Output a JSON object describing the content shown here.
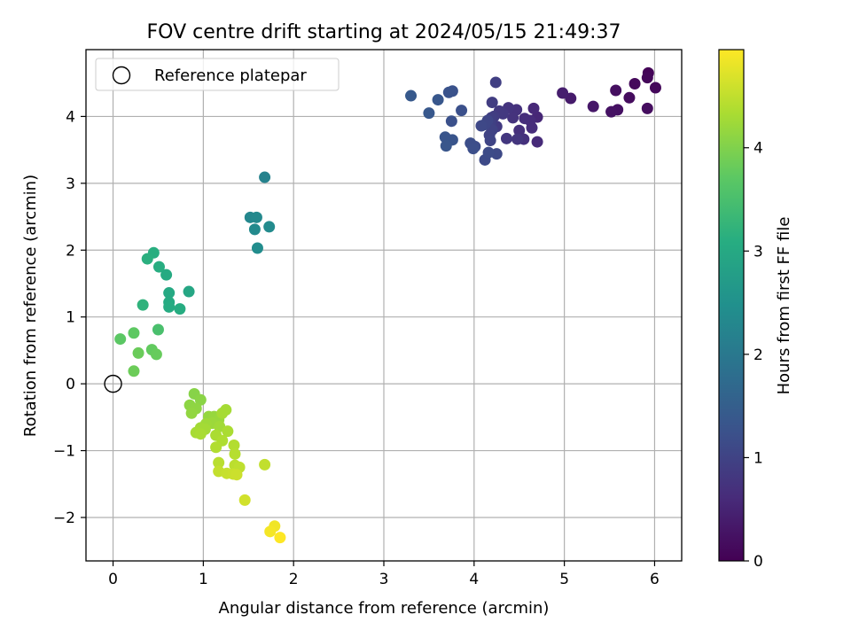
{
  "chart_data": {
    "type": "scatter",
    "title": "FOV centre drift starting at 2024/05/15 21:49:37",
    "xlabel": "Angular distance from reference (arcmin)",
    "ylabel": "Rotation from reference (arcmin)",
    "xlim": [
      -0.3,
      6.3
    ],
    "ylim": [
      -2.65,
      5.0
    ],
    "xticks": [
      0,
      1,
      2,
      3,
      4,
      5,
      6
    ],
    "yticks": [
      -2,
      -1,
      0,
      1,
      2,
      3,
      4
    ],
    "grid": true,
    "legend": {
      "placement": "top-left",
      "entries": [
        "Reference platepar"
      ]
    },
    "reference_point": {
      "x": 0,
      "y": 0
    },
    "colorbar": {
      "label": "Hours from first FF file",
      "range": [
        0,
        4.95
      ],
      "ticks": [
        0,
        1,
        2,
        3,
        4
      ],
      "colormap": "viridis"
    },
    "points": [
      {
        "x": 5.93,
        "y": 4.65,
        "c": 0.05
      },
      {
        "x": 5.92,
        "y": 4.58,
        "c": 0.08
      },
      {
        "x": 6.01,
        "y": 4.43,
        "c": 0.1
      },
      {
        "x": 5.78,
        "y": 4.49,
        "c": 0.12
      },
      {
        "x": 5.72,
        "y": 4.28,
        "c": 0.16
      },
      {
        "x": 5.92,
        "y": 4.12,
        "c": 0.18
      },
      {
        "x": 5.57,
        "y": 4.39,
        "c": 0.2
      },
      {
        "x": 5.59,
        "y": 4.1,
        "c": 0.22
      },
      {
        "x": 5.52,
        "y": 4.07,
        "c": 0.25
      },
      {
        "x": 5.32,
        "y": 4.15,
        "c": 0.32
      },
      {
        "x": 5.07,
        "y": 4.27,
        "c": 0.38
      },
      {
        "x": 4.98,
        "y": 4.35,
        "c": 0.42
      },
      {
        "x": 4.7,
        "y": 3.99,
        "c": 0.55
      },
      {
        "x": 4.66,
        "y": 4.12,
        "c": 0.58
      },
      {
        "x": 4.7,
        "y": 3.62,
        "c": 0.6
      },
      {
        "x": 4.62,
        "y": 3.94,
        "c": 0.62
      },
      {
        "x": 4.64,
        "y": 3.83,
        "c": 0.64
      },
      {
        "x": 4.56,
        "y": 3.97,
        "c": 0.66
      },
      {
        "x": 4.5,
        "y": 3.79,
        "c": 0.68
      },
      {
        "x": 4.55,
        "y": 3.66,
        "c": 0.7
      },
      {
        "x": 4.47,
        "y": 4.1,
        "c": 0.72
      },
      {
        "x": 4.43,
        "y": 3.98,
        "c": 0.74
      },
      {
        "x": 4.38,
        "y": 4.13,
        "c": 0.76
      },
      {
        "x": 4.48,
        "y": 3.66,
        "c": 0.78
      },
      {
        "x": 4.36,
        "y": 3.67,
        "c": 0.8
      },
      {
        "x": 4.32,
        "y": 4.04,
        "c": 0.82
      },
      {
        "x": 4.28,
        "y": 4.08,
        "c": 0.84
      },
      {
        "x": 4.25,
        "y": 3.85,
        "c": 0.86
      },
      {
        "x": 4.22,
        "y": 4.0,
        "c": 0.88
      },
      {
        "x": 4.2,
        "y": 4.21,
        "c": 0.9
      },
      {
        "x": 4.19,
        "y": 3.98,
        "c": 0.92
      },
      {
        "x": 4.24,
        "y": 4.51,
        "c": 0.94
      },
      {
        "x": 4.18,
        "y": 3.9,
        "c": 0.96
      },
      {
        "x": 4.2,
        "y": 3.8,
        "c": 0.98
      },
      {
        "x": 4.17,
        "y": 3.72,
        "c": 1.0
      },
      {
        "x": 4.18,
        "y": 3.64,
        "c": 1.02
      },
      {
        "x": 4.15,
        "y": 3.94,
        "c": 1.04
      },
      {
        "x": 4.12,
        "y": 3.88,
        "c": 1.06
      },
      {
        "x": 4.08,
        "y": 3.86,
        "c": 1.08
      },
      {
        "x": 4.25,
        "y": 3.44,
        "c": 1.1
      },
      {
        "x": 4.12,
        "y": 3.35,
        "c": 1.12
      },
      {
        "x": 4.16,
        "y": 3.46,
        "c": 1.14
      },
      {
        "x": 4.01,
        "y": 3.55,
        "c": 1.16
      },
      {
        "x": 3.96,
        "y": 3.6,
        "c": 1.18
      },
      {
        "x": 3.99,
        "y": 3.52,
        "c": 1.2
      },
      {
        "x": 3.86,
        "y": 4.09,
        "c": 1.22
      },
      {
        "x": 3.75,
        "y": 3.93,
        "c": 1.24
      },
      {
        "x": 3.76,
        "y": 4.38,
        "c": 1.26
      },
      {
        "x": 3.72,
        "y": 4.36,
        "c": 1.28
      },
      {
        "x": 3.76,
        "y": 3.65,
        "c": 1.3
      },
      {
        "x": 3.68,
        "y": 3.69,
        "c": 1.32
      },
      {
        "x": 3.69,
        "y": 3.56,
        "c": 1.34
      },
      {
        "x": 3.6,
        "y": 4.25,
        "c": 1.36
      },
      {
        "x": 3.5,
        "y": 4.05,
        "c": 1.38
      },
      {
        "x": 3.3,
        "y": 4.31,
        "c": 1.4
      },
      {
        "x": 1.68,
        "y": 3.09,
        "c": 2.2
      },
      {
        "x": 1.52,
        "y": 2.49,
        "c": 2.3
      },
      {
        "x": 1.59,
        "y": 2.49,
        "c": 2.33
      },
      {
        "x": 1.57,
        "y": 2.31,
        "c": 2.36
      },
      {
        "x": 1.73,
        "y": 2.35,
        "c": 2.38
      },
      {
        "x": 1.6,
        "y": 2.03,
        "c": 2.42
      },
      {
        "x": 0.84,
        "y": 1.38,
        "c": 2.95
      },
      {
        "x": 0.62,
        "y": 1.36,
        "c": 3.0
      },
      {
        "x": 0.59,
        "y": 1.63,
        "c": 3.02
      },
      {
        "x": 0.62,
        "y": 1.22,
        "c": 3.04
      },
      {
        "x": 0.62,
        "y": 1.15,
        "c": 3.06
      },
      {
        "x": 0.74,
        "y": 1.12,
        "c": 3.08
      },
      {
        "x": 0.51,
        "y": 1.75,
        "c": 3.1
      },
      {
        "x": 0.45,
        "y": 1.96,
        "c": 3.12
      },
      {
        "x": 0.38,
        "y": 1.87,
        "c": 3.14
      },
      {
        "x": 0.33,
        "y": 1.18,
        "c": 3.2
      },
      {
        "x": 0.5,
        "y": 0.81,
        "c": 3.5
      },
      {
        "x": 0.08,
        "y": 0.67,
        "c": 3.7
      },
      {
        "x": 0.23,
        "y": 0.76,
        "c": 3.72
      },
      {
        "x": 0.43,
        "y": 0.51,
        "c": 3.76
      },
      {
        "x": 0.48,
        "y": 0.44,
        "c": 3.8
      },
      {
        "x": 0.28,
        "y": 0.46,
        "c": 3.82
      },
      {
        "x": 0.23,
        "y": 0.19,
        "c": 3.84
      },
      {
        "x": 0.9,
        "y": -0.15,
        "c": 4.05
      },
      {
        "x": 0.97,
        "y": -0.24,
        "c": 4.08
      },
      {
        "x": 0.85,
        "y": -0.32,
        "c": 4.1
      },
      {
        "x": 0.92,
        "y": -0.37,
        "c": 4.12
      },
      {
        "x": 0.87,
        "y": -0.44,
        "c": 4.14
      },
      {
        "x": 1.06,
        "y": -0.49,
        "c": 4.16
      },
      {
        "x": 1.12,
        "y": -0.49,
        "c": 4.18
      },
      {
        "x": 1.17,
        "y": -0.54,
        "c": 4.2
      },
      {
        "x": 1.1,
        "y": -0.59,
        "c": 4.22
      },
      {
        "x": 1.03,
        "y": -0.6,
        "c": 4.24
      },
      {
        "x": 1.18,
        "y": -0.64,
        "c": 4.26
      },
      {
        "x": 0.97,
        "y": -0.66,
        "c": 4.27
      },
      {
        "x": 1.02,
        "y": -0.68,
        "c": 4.28
      },
      {
        "x": 1.25,
        "y": -0.39,
        "c": 4.29
      },
      {
        "x": 1.21,
        "y": -0.44,
        "c": 4.3
      },
      {
        "x": 0.92,
        "y": -0.73,
        "c": 4.31
      },
      {
        "x": 0.97,
        "y": -0.75,
        "c": 4.32
      },
      {
        "x": 1.27,
        "y": -0.71,
        "c": 4.33
      },
      {
        "x": 1.14,
        "y": -0.77,
        "c": 4.34
      },
      {
        "x": 1.21,
        "y": -0.85,
        "c": 4.36
      },
      {
        "x": 1.14,
        "y": -0.95,
        "c": 4.38
      },
      {
        "x": 1.34,
        "y": -0.92,
        "c": 4.4
      },
      {
        "x": 1.35,
        "y": -1.05,
        "c": 4.42
      },
      {
        "x": 1.17,
        "y": -1.18,
        "c": 4.44
      },
      {
        "x": 1.35,
        "y": -1.22,
        "c": 4.46
      },
      {
        "x": 1.4,
        "y": -1.25,
        "c": 4.48
      },
      {
        "x": 1.68,
        "y": -1.21,
        "c": 4.5
      },
      {
        "x": 1.17,
        "y": -1.31,
        "c": 4.52
      },
      {
        "x": 1.26,
        "y": -1.34,
        "c": 4.54
      },
      {
        "x": 1.33,
        "y": -1.35,
        "c": 4.56
      },
      {
        "x": 1.37,
        "y": -1.36,
        "c": 4.58
      },
      {
        "x": 1.46,
        "y": -1.74,
        "c": 4.62
      },
      {
        "x": 1.79,
        "y": -2.13,
        "c": 4.85
      },
      {
        "x": 1.74,
        "y": -2.21,
        "c": 4.88
      },
      {
        "x": 1.85,
        "y": -2.3,
        "c": 4.95
      }
    ]
  }
}
